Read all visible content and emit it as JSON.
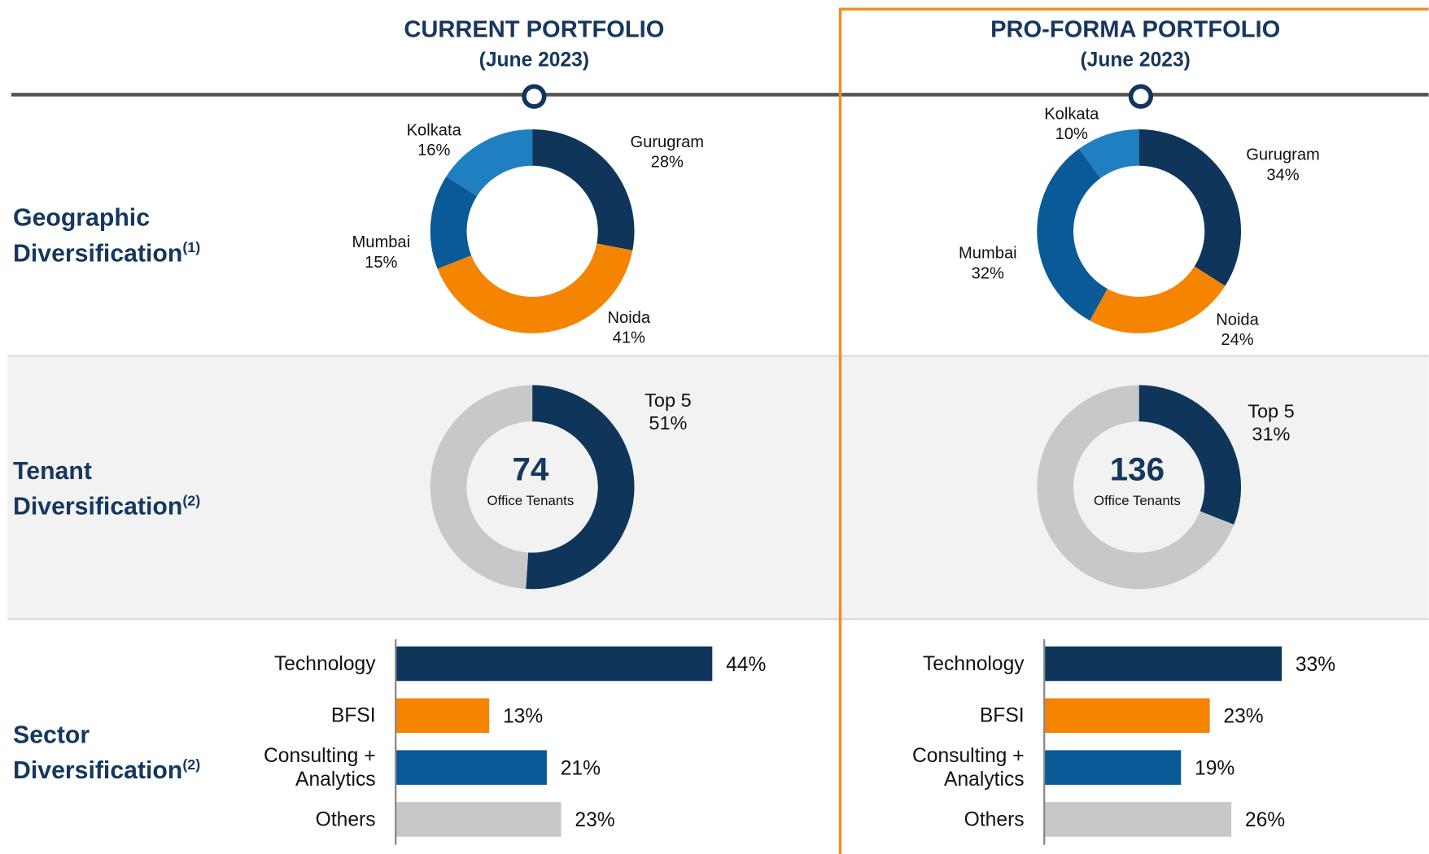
{
  "columns": [
    {
      "title": "CURRENT PORTFOLIO",
      "subtitle": "(June 2023)"
    },
    {
      "title": "PRO-FORMA PORTFOLIO",
      "subtitle": "(June 2023)"
    }
  ],
  "rows": [
    {
      "label": "Geographic Diversification",
      "note": "(1)"
    },
    {
      "label": "Tenant Diversification",
      "note": "(2)"
    },
    {
      "label": "Sector Diversification",
      "note": "(2)"
    }
  ],
  "chart_data": [
    {
      "type": "donut",
      "categories": [
        "Gurugram",
        "Noida",
        "Mumbai",
        "Kolkata"
      ],
      "values": [
        28,
        41,
        15,
        16
      ],
      "value_labels": [
        "28%",
        "41%",
        "15%",
        "16%"
      ],
      "colors": [
        "#10355a",
        "#f58400",
        "#0a5a97",
        "#1f7fc0"
      ]
    },
    {
      "type": "donut",
      "categories": [
        "Gurugram",
        "Noida",
        "Mumbai",
        "Kolkata"
      ],
      "values": [
        34,
        24,
        32,
        10
      ],
      "value_labels": [
        "34%",
        "24%",
        "32%",
        "10%"
      ],
      "colors": [
        "#10355a",
        "#f58400",
        "#0a5a97",
        "#1f7fc0"
      ]
    },
    {
      "type": "donut",
      "categories": [
        "Top 5",
        null
      ],
      "values": [
        51,
        49
      ],
      "value_labels": [
        "51%",
        null
      ],
      "colors": [
        "#10355a",
        "#c8c8c8"
      ],
      "center_value": 74,
      "center_label": "Office Tenants"
    },
    {
      "type": "donut",
      "categories": [
        "Top 5",
        null
      ],
      "values": [
        31,
        69
      ],
      "value_labels": [
        "31%",
        null
      ],
      "colors": [
        "#10355a",
        "#c8c8c8"
      ],
      "center_value": 136,
      "center_label": "Office Tenants"
    },
    {
      "type": "hbar",
      "categories": [
        "Technology",
        "BFSI",
        "Consulting + Analytics",
        "Others"
      ],
      "values": [
        44,
        13,
        21,
        23
      ],
      "value_labels": [
        "44%",
        "13%",
        "21%",
        "23%"
      ],
      "colors": [
        "#10355a",
        "#f58400",
        "#0a5a97",
        "#c8c8c8"
      ],
      "xlim": [
        0,
        50
      ]
    },
    {
      "type": "hbar",
      "categories": [
        "Technology",
        "BFSI",
        "Consulting + Analytics",
        "Others"
      ],
      "values": [
        33,
        23,
        19,
        26
      ],
      "value_labels": [
        "33%",
        "23%",
        "19%",
        "26%"
      ],
      "colors": [
        "#10355a",
        "#f58400",
        "#0a5a97",
        "#c8c8c8"
      ],
      "xlim": [
        0,
        50
      ]
    }
  ]
}
